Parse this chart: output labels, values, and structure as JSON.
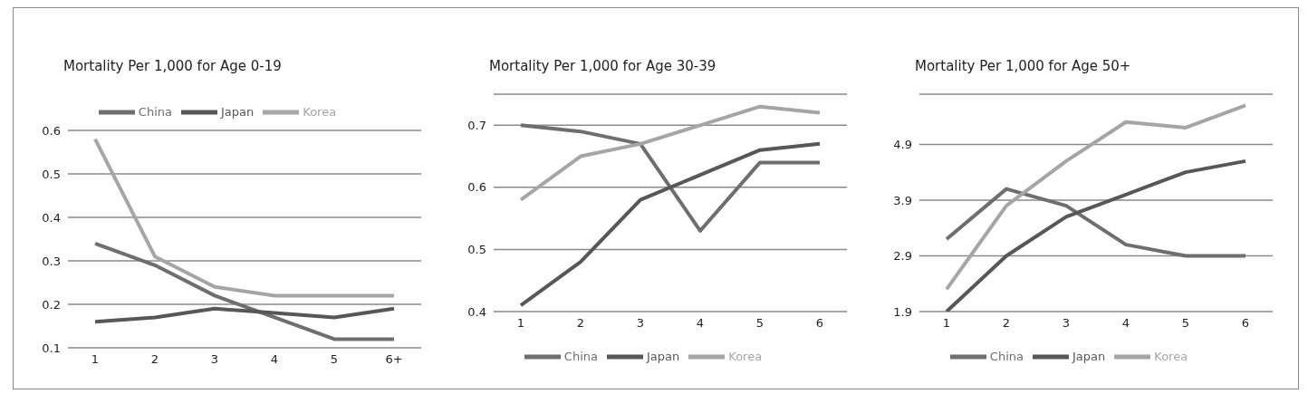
{
  "chart_data": [
    {
      "type": "line",
      "title": "Mortality Per 1,000 for Age 0-19",
      "categories": [
        "1",
        "2",
        "3",
        "4",
        "5",
        "6+"
      ],
      "ylim": [
        0.1,
        0.6
      ],
      "yticks": [
        0.1,
        0.2,
        0.3,
        0.4,
        0.5,
        0.6
      ],
      "grid": "y",
      "legend": "top",
      "series": [
        {
          "name": "China",
          "color": "#6e6e6e",
          "values": [
            0.34,
            0.29,
            0.22,
            0.17,
            0.12,
            0.12
          ]
        },
        {
          "name": "Japan",
          "color": "#575757",
          "values": [
            0.16,
            0.17,
            0.19,
            0.18,
            0.17,
            0.19
          ]
        },
        {
          "name": "Korea",
          "color": "#a5a5a5",
          "values": [
            0.58,
            0.31,
            0.24,
            0.22,
            0.22,
            0.22
          ]
        }
      ]
    },
    {
      "type": "line",
      "title": "Mortality Per 1,000 for Age 30-39",
      "categories": [
        "1",
        "2",
        "3",
        "4",
        "5",
        "6"
      ],
      "ylim": [
        0.4,
        0.75
      ],
      "yticks": [
        0.4,
        0.5,
        0.6,
        0.7
      ],
      "grid": "y",
      "legend": "bottom",
      "series": [
        {
          "name": "China",
          "color": "#6e6e6e",
          "values": [
            0.7,
            0.69,
            0.67,
            0.53,
            0.64,
            0.64
          ]
        },
        {
          "name": "Japan",
          "color": "#575757",
          "values": [
            0.41,
            0.48,
            0.58,
            0.62,
            0.66,
            0.67
          ]
        },
        {
          "name": "Korea",
          "color": "#a5a5a5",
          "values": [
            0.58,
            0.65,
            0.67,
            0.7,
            0.73,
            0.72
          ]
        }
      ]
    },
    {
      "type": "line",
      "title": "Mortality Per 1,000 for Age 50+",
      "categories": [
        "1",
        "2",
        "3",
        "4",
        "5",
        "6"
      ],
      "ylim": [
        1.9,
        5.8
      ],
      "yticks": [
        1.9,
        2.9,
        3.9,
        4.9
      ],
      "grid": "y",
      "legend": "bottom",
      "series": [
        {
          "name": "China",
          "color": "#6e6e6e",
          "values": [
            3.2,
            4.1,
            3.8,
            3.1,
            2.9,
            2.9
          ]
        },
        {
          "name": "Japan",
          "color": "#575757",
          "values": [
            1.9,
            2.9,
            3.6,
            4.0,
            4.4,
            4.6
          ]
        },
        {
          "name": "Korea",
          "color": "#a5a5a5",
          "values": [
            2.3,
            3.8,
            4.6,
            5.3,
            5.2,
            5.6
          ]
        }
      ]
    }
  ]
}
